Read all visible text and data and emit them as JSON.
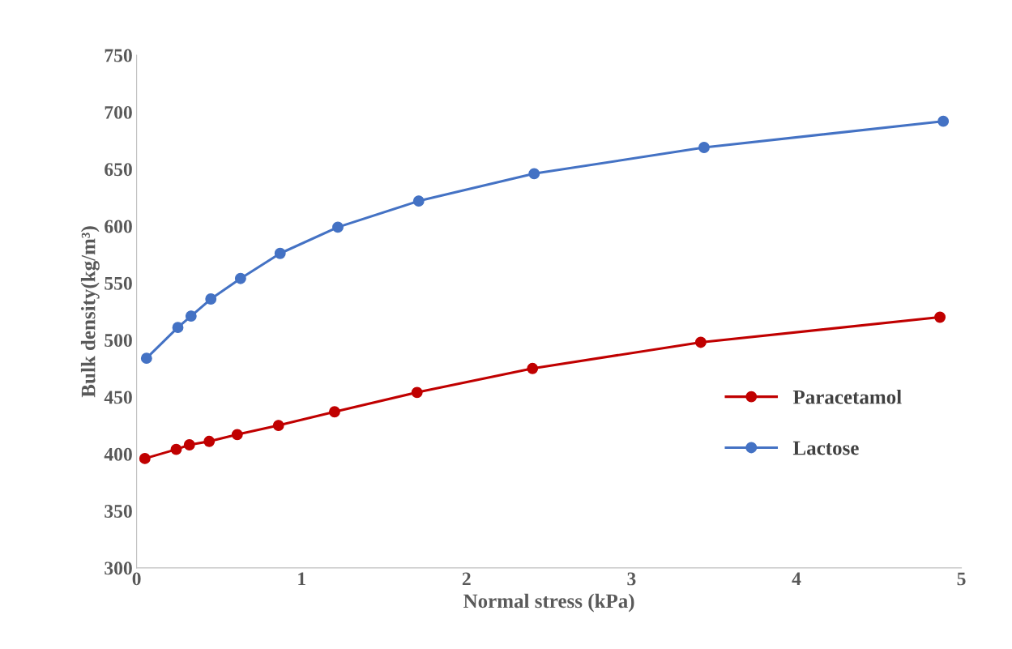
{
  "chart_data": {
    "type": "line",
    "xlabel": "Normal stress (kPa)",
    "ylabel": "Bulk density(kg/m³)",
    "xlim": [
      0,
      5
    ],
    "xticks": [
      0,
      1,
      2,
      3,
      4,
      5
    ],
    "ylim": [
      300,
      750
    ],
    "yticks": [
      300,
      350,
      400,
      450,
      500,
      550,
      600,
      650,
      700,
      750
    ],
    "grid": false,
    "legend": "right",
    "marker": "circle",
    "line_style": "solid",
    "series": [
      {
        "name": "Paracetamol",
        "color": "#c00000",
        "x": [
          0.05,
          0.24,
          0.32,
          0.44,
          0.61,
          0.86,
          1.2,
          1.7,
          2.4,
          3.42,
          4.87
        ],
        "values": [
          396,
          404,
          408,
          411,
          417,
          425,
          437,
          454,
          475,
          498,
          520
        ]
      },
      {
        "name": "Lactose",
        "color": "#4472c4",
        "x": [
          0.06,
          0.25,
          0.33,
          0.45,
          0.63,
          0.87,
          1.22,
          1.71,
          2.41,
          3.44,
          4.89
        ],
        "values": [
          484,
          511,
          521,
          536,
          554,
          576,
          599,
          622,
          646,
          669,
          692
        ]
      }
    ]
  }
}
